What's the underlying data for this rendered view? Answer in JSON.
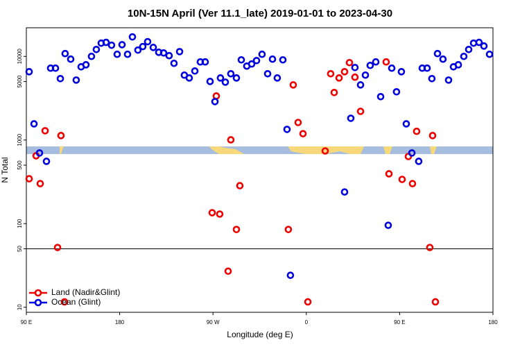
{
  "chart_data": {
    "type": "scatter",
    "title": "10N-15N April (Ver 11.1_late)   2019-01-01 to 2023-04-30",
    "x_label": "Longitude (deg E)",
    "y_label": "N Total",
    "xlim": [
      90,
      540
    ],
    "xticks": [
      {
        "value": 90,
        "label": "90 E"
      },
      180,
      {
        "value": 270,
        "label": "90 W"
      },
      {
        "value": 360,
        "label": "0"
      },
      {
        "value": 450,
        "label": "90 E"
      },
      {
        "value": 540,
        "label": "180"
      }
    ],
    "ylim": [
      8.7,
      22000
    ],
    "log_y": true,
    "yticks": [
      10,
      50,
      100,
      500,
      1000,
      5000,
      10000
    ],
    "hline": 50,
    "legend": "bottom-left",
    "series": [
      {
        "name": "Land (Nadir&Glint)",
        "color": "#ee0000",
        "x": [
          92.7,
          99.4,
          103.4,
          108.1,
          120.1,
          123.4,
          126.8,
          269.2,
          273.2,
          276.5,
          284.6,
          287.2,
          292.6,
          295.9,
          342.7,
          347.4,
          352.1,
          356.8,
          361.5,
          378.2,
          383.5,
          386.9,
          391.6,
          396.9,
          401.6,
          406.9,
          412.3,
          437,
          439.7,
          452.4,
          458.4,
          462.4,
          466.4,
          479.1,
          481.8,
          484.5
        ],
        "values": [
          344,
          647,
          301,
          1290,
          51.8,
          1130,
          11.6,
          135,
          3360,
          130,
          27.0,
          1005,
          85.1,
          284,
          85.1,
          4560,
          1620,
          1190,
          11.6,
          740,
          6200,
          3700,
          5520,
          6560,
          8420,
          5640,
          2200,
          8590,
          394,
          338,
          635,
          301,
          1270,
          51.8,
          1130,
          11.6
        ]
      },
      {
        "name": "Ocean (Glint)",
        "color": "#0000dd",
        "x": [
          92.7,
          97.4,
          102.7,
          109.4,
          113.4,
          118.1,
          122.8,
          127.4,
          132.8,
          138.1,
          142.8,
          147.5,
          152.8,
          157.5,
          162.2,
          166.9,
          172.2,
          177.6,
          182.3,
          187.6,
          192.3,
          197.6,
          202.3,
          207,
          212.4,
          217.7,
          222.4,
          227.7,
          232.4,
          237.8,
          242.4,
          247.1,
          252.5,
          257.8,
          262.5,
          267.2,
          271.9,
          277.2,
          281.9,
          287.2,
          292.6,
          297.3,
          302.6,
          307.3,
          312,
          317.3,
          322.7,
          327.4,
          332,
          337.4,
          341.4,
          344.7,
          396.9,
          402.9,
          406.9,
          412.3,
          417,
          421.6,
          427,
          431.7,
          439,
          442.4,
          447,
          451.7,
          456.4,
          461.8,
          468.4,
          471.8,
          476.5,
          481.1,
          486.5,
          491.8,
          497.2,
          501.9,
          506.6,
          511.9,
          516.6,
          521.3,
          526.6,
          531.3,
          536.7
        ],
        "values": [
          6560,
          1560,
          700,
          556,
          7230,
          7230,
          5420,
          10800,
          9270,
          5210,
          7500,
          7940,
          10000,
          12100,
          14400,
          14700,
          13600,
          10600,
          13800,
          10600,
          17100,
          11900,
          13100,
          15000,
          12800,
          11200,
          11000,
          10200,
          8260,
          11400,
          5970,
          5520,
          6690,
          8590,
          8590,
          5020,
          2880,
          5520,
          4920,
          6200,
          5520,
          9090,
          7650,
          8110,
          8910,
          10600,
          6200,
          9270,
          5520,
          9090,
          1340,
          24.1,
          239,
          1820,
          7360,
          4560,
          5970,
          7800,
          8590,
          3300,
          95.5,
          7230,
          3770,
          6560,
          1560,
          700,
          556,
          7230,
          7230,
          5420,
          10800,
          9270,
          5210,
          7500,
          7940,
          10000,
          12100,
          14400,
          14700,
          13300,
          10600
        ]
      }
    ]
  }
}
